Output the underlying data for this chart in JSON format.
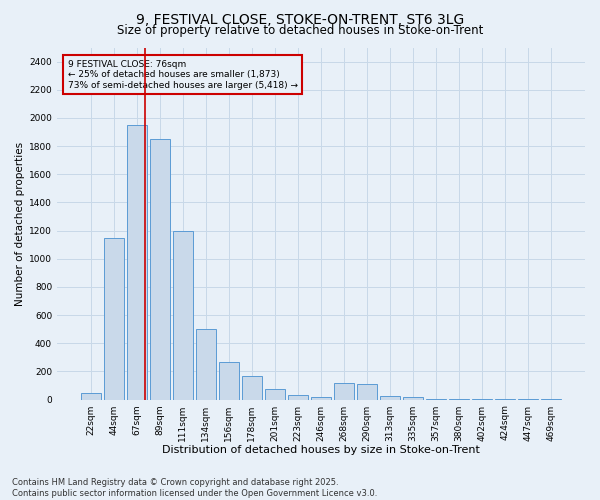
{
  "title": "9, FESTIVAL CLOSE, STOKE-ON-TRENT, ST6 3LG",
  "subtitle": "Size of property relative to detached houses in Stoke-on-Trent",
  "xlabel": "Distribution of detached houses by size in Stoke-on-Trent",
  "ylabel": "Number of detached properties",
  "categories": [
    "22sqm",
    "44sqm",
    "67sqm",
    "89sqm",
    "111sqm",
    "134sqm",
    "156sqm",
    "178sqm",
    "201sqm",
    "223sqm",
    "246sqm",
    "268sqm",
    "290sqm",
    "313sqm",
    "335sqm",
    "357sqm",
    "380sqm",
    "402sqm",
    "424sqm",
    "447sqm",
    "469sqm"
  ],
  "values": [
    50,
    1150,
    1950,
    1850,
    1200,
    500,
    270,
    165,
    75,
    35,
    20,
    120,
    110,
    25,
    18,
    6,
    3,
    2,
    1,
    1,
    1
  ],
  "bar_color": "#c9d9ea",
  "bar_edge_color": "#5b9bd5",
  "grid_color": "#c8d8e8",
  "background_color": "#e8f0f8",
  "vline_color": "#cc0000",
  "vline_x": 2.35,
  "annotation_text": "9 FESTIVAL CLOSE: 76sqm\n← 25% of detached houses are smaller (1,873)\n73% of semi-detached houses are larger (5,418) →",
  "annotation_box_edge": "#cc0000",
  "ylim": [
    0,
    2500
  ],
  "yticks": [
    0,
    200,
    400,
    600,
    800,
    1000,
    1200,
    1400,
    1600,
    1800,
    2000,
    2200,
    2400
  ],
  "footer_line1": "Contains HM Land Registry data © Crown copyright and database right 2025.",
  "footer_line2": "Contains public sector information licensed under the Open Government Licence v3.0.",
  "title_fontsize": 10,
  "subtitle_fontsize": 8.5,
  "xlabel_fontsize": 8,
  "ylabel_fontsize": 7.5,
  "tick_fontsize": 6.5,
  "annot_fontsize": 6.5,
  "footer_fontsize": 6
}
